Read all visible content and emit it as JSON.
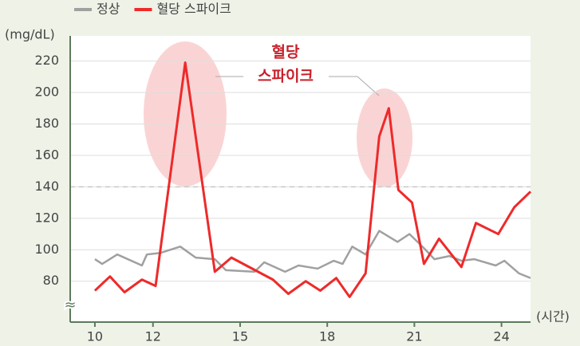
{
  "chart_data": {
    "type": "line",
    "y_label": "(mg/dL)",
    "x_label": "(시간)",
    "annotation": [
      "혈당",
      "스파이크"
    ],
    "xlim": [
      9.15,
      25
    ],
    "xticks": [
      10,
      12,
      15,
      18,
      21,
      24
    ],
    "ylim": [
      54,
      236
    ],
    "yticks": [
      80,
      100,
      120,
      140,
      160,
      180,
      200,
      220
    ],
    "threshold": 140,
    "grid": true,
    "legend": "top",
    "series": [
      {
        "name": "정상",
        "color": "#a0a0a0",
        "x": [
          10,
          10.25,
          10.77,
          11.62,
          11.79,
          12.26,
          12.94,
          13.47,
          14.13,
          14.51,
          15.5,
          15.83,
          16.55,
          17.01,
          17.67,
          18.22,
          18.53,
          18.86,
          19.32,
          19.79,
          20.42,
          20.83,
          21.33,
          21.69,
          22.21,
          22.62,
          23.06,
          23.8,
          24.1,
          24.6,
          25
        ],
        "values": [
          94,
          91,
          97,
          90,
          97,
          98,
          102,
          95,
          94,
          87,
          86,
          92,
          86,
          90,
          88,
          93,
          91,
          102,
          97,
          112,
          105,
          110,
          101,
          94,
          96,
          93,
          94,
          90,
          93,
          85,
          82
        ]
      },
      {
        "name": "혈당 스파이크",
        "color": "#ee2a2a",
        "x": [
          10,
          10.52,
          11.02,
          11.62,
          12.09,
          13.11,
          14.13,
          14.7,
          16.13,
          16.66,
          17.26,
          17.76,
          18.31,
          18.77,
          19.32,
          19.79,
          20.12,
          20.45,
          20.92,
          21.33,
          21.85,
          22.62,
          23.12,
          23.89,
          24.44,
          25
        ],
        "values": [
          74,
          83,
          73,
          81,
          77,
          219,
          86,
          95,
          81,
          72,
          80,
          74,
          82,
          70,
          85,
          172,
          190,
          138,
          130,
          91,
          107,
          89,
          117,
          110,
          127,
          137
        ]
      }
    ]
  }
}
